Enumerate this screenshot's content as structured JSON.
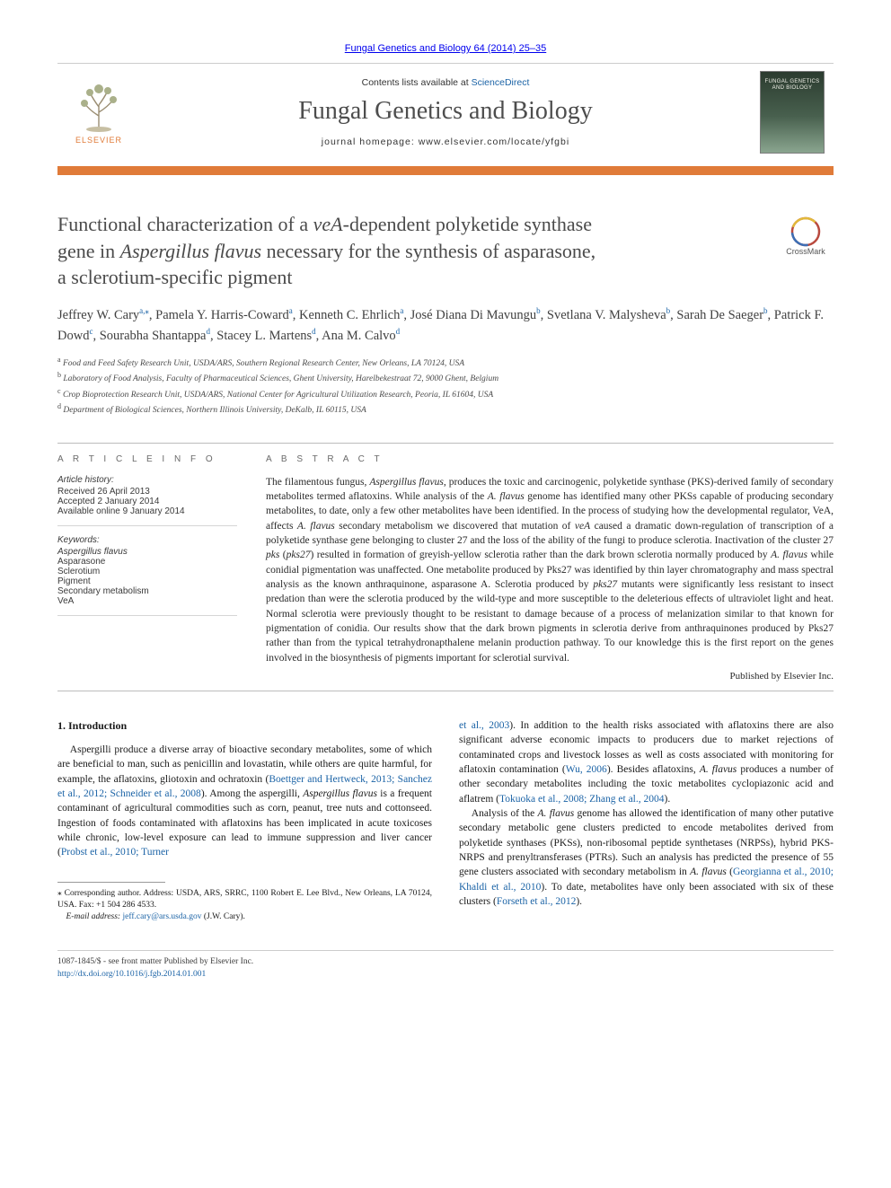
{
  "topbar": {
    "citation": "Fungal Genetics and Biology 64 (2014) 25–35"
  },
  "header": {
    "contents_prefix": "Contents lists available at ",
    "contents_link": "ScienceDirect",
    "journal_title": "Fungal Genetics and Biology",
    "homepage_prefix": "journal homepage: ",
    "homepage_url": "www.elsevier.com/locate/yfgbi",
    "elsevier_word": "ELSEVIER",
    "cover_line1": "FUNGAL GENETICS",
    "cover_line2": "AND BIOLOGY",
    "crossmark_label": "CrossMark",
    "colors": {
      "orange": "#e07b39",
      "link": "#1b63a6",
      "rule": "#bcbcbc",
      "cover_start": "#2b3b2f",
      "cover_mid": "#48604e",
      "cover_end": "#8aa58f"
    }
  },
  "title": {
    "line1": "Functional characterization of a ",
    "em1": "veA",
    "line2": "-dependent polyketide synthase",
    "line3": "gene in ",
    "em2": "Aspergillus flavus",
    "line4": " necessary for the synthesis of asparasone,",
    "line5": "a sclerotium-specific pigment"
  },
  "authors_html": "Jeffrey W. Cary<sup>a,</sup><span class=\"star\"><sup>⁎</sup></span>, Pamela Y. Harris-Coward<sup>a</sup>, Kenneth C. Ehrlich<sup>a</sup>, José Diana Di Mavungu<sup>b</sup>, Svetlana V. Malysheva<sup>b</sup>, Sarah De Saeger<sup>b</sup>, Patrick F. Dowd<sup>c</sup>, Sourabha Shantappa<sup>d</sup>, Stacey L. Martens<sup>d</sup>, Ana M. Calvo<sup>d</sup>",
  "affiliations": [
    {
      "sup": "a",
      "text": "Food and Feed Safety Research Unit, USDA/ARS, Southern Regional Research Center, New Orleans, LA 70124, USA"
    },
    {
      "sup": "b",
      "text": "Laboratory of Food Analysis, Faculty of Pharmaceutical Sciences, Ghent University, Harelbekestraat 72, 9000 Ghent, Belgium"
    },
    {
      "sup": "c",
      "text": "Crop Bioprotection Research Unit, USDA/ARS, National Center for Agricultural Utilization Research, Peoria, IL 61604, USA"
    },
    {
      "sup": "d",
      "text": "Department of Biological Sciences, Northern Illinois University, DeKalb, IL 60115, USA"
    }
  ],
  "info": {
    "heading": "A R T I C L E   I N F O",
    "history_label": "Article history:",
    "history": [
      "Received 26 April 2013",
      "Accepted 2 January 2014",
      "Available online 9 January 2014"
    ],
    "keywords_label": "Keywords:",
    "keywords": [
      "Aspergillus flavus",
      "Asparasone",
      "Sclerotium",
      "Pigment",
      "Secondary metabolism",
      "VeA"
    ]
  },
  "abstract": {
    "heading": "A B S T R A C T",
    "text_html": "The filamentous fungus, <em>Aspergillus flavus</em>, produces the toxic and carcinogenic, polyketide synthase (PKS)-derived family of secondary metabolites termed aflatoxins. While analysis of the <em>A. flavus</em> genome has identified many other PKSs capable of producing secondary metabolites, to date, only a few other metabolites have been identified. In the process of studying how the developmental regulator, VeA, affects <em>A. flavus</em> secondary metabolism we discovered that mutation of <em>veA</em> caused a dramatic down-regulation of transcription of a polyketide synthase gene belonging to cluster 27 and the loss of the ability of the fungi to produce sclerotia. Inactivation of the cluster 27 <em>pks</em> (<em>pks27</em>) resulted in formation of greyish-yellow sclerotia rather than the dark brown sclerotia normally produced by <em>A. flavus</em> while conidial pigmentation was unaffected. One metabolite produced by Pks27 was identified by thin layer chromatography and mass spectral analysis as the known anthraquinone, asparasone A. Sclerotia produced by <em>pks27</em> mutants were significantly less resistant to insect predation than were the sclerotia produced by the wild-type and more susceptible to the deleterious effects of ultraviolet light and heat. Normal sclerotia were previously thought to be resistant to damage because of a process of melanization similar to that known for pigmentation of conidia. Our results show that the dark brown pigments in sclerotia derive from anthraquinones produced by Pks27 rather than from the typical tetrahydronapthalene melanin production pathway. To our knowledge this is the first report on the genes involved in the biosynthesis of pigments important for sclerotial survival.",
    "publisher_line": "Published by Elsevier Inc."
  },
  "body": {
    "section_heading": "1. Introduction",
    "left_p1_html": "Aspergilli produce a diverse array of bioactive secondary metabolites, some of which are beneficial to man, such as penicillin and lovastatin, while others are quite harmful, for example, the aflatoxins, gliotoxin and ochratoxin (<a href=\"#\" data-name=\"ref-link\" data-interactable=\"true\">Boettger and Hertweck, 2013; Sanchez et al., 2012; Schneider et al., 2008</a>). Among the aspergilli, <em>Aspergillus flavus</em> is a frequent contaminant of agricultural commodities such as corn, peanut, tree nuts and cottonseed. Ingestion of foods contaminated with aflatoxins has been implicated in acute toxicoses while chronic, low-level exposure can lead to immune suppression and liver cancer (<a href=\"#\" data-name=\"ref-link\" data-interactable=\"true\">Probst et al., 2010; Turner</a>",
    "right_p1_html": "<a href=\"#\" data-name=\"ref-link\" data-interactable=\"true\">et al., 2003</a>). In addition to the health risks associated with aflatoxins there are also significant adverse economic impacts to producers due to market rejections of contaminated crops and livestock losses as well as costs associated with monitoring for aflatoxin contamination (<a href=\"#\" data-name=\"ref-link\" data-interactable=\"true\">Wu, 2006</a>). Besides aflatoxins, <em>A. flavus</em> produces a number of other secondary metabolites including the toxic metabolites cyclopiazonic acid and aflatrem (<a href=\"#\" data-name=\"ref-link\" data-interactable=\"true\">Tokuoka et al., 2008; Zhang et al., 2004</a>).",
    "right_p2_html": "Analysis of the <em>A. flavus</em> genome has allowed the identification of many other putative secondary metabolic gene clusters predicted to encode metabolites derived from polyketide synthases (PKSs), non-ribosomal peptide synthetases (NRPSs), hybrid PKS-NRPS and prenyltransferases (PTRs). Such an analysis has predicted the presence of 55 gene clusters associated with secondary metabolism in <em>A. flavus</em> (<a href=\"#\" data-name=\"ref-link\" data-interactable=\"true\">Georgianna et al., 2010; Khaldi et al., 2010</a>). To date, metabolites have only been associated with six of these clusters (<a href=\"#\" data-name=\"ref-link\" data-interactable=\"true\">Forseth et al., 2012</a>)."
  },
  "corr": {
    "star": "⁎",
    "text": "Corresponding author. Address: USDA, ARS, SRRC, 1100 Robert E. Lee Blvd., New Orleans, LA 70124, USA. Fax: +1 504 286 4533.",
    "email_label": "E-mail address: ",
    "email": "jeff.cary@ars.usda.gov",
    "email_suffix": " (J.W. Cary)."
  },
  "footer": {
    "line1": "1087-1845/$ - see front matter Published by Elsevier Inc.",
    "doi": "http://dx.doi.org/10.1016/j.fgb.2014.01.001"
  }
}
